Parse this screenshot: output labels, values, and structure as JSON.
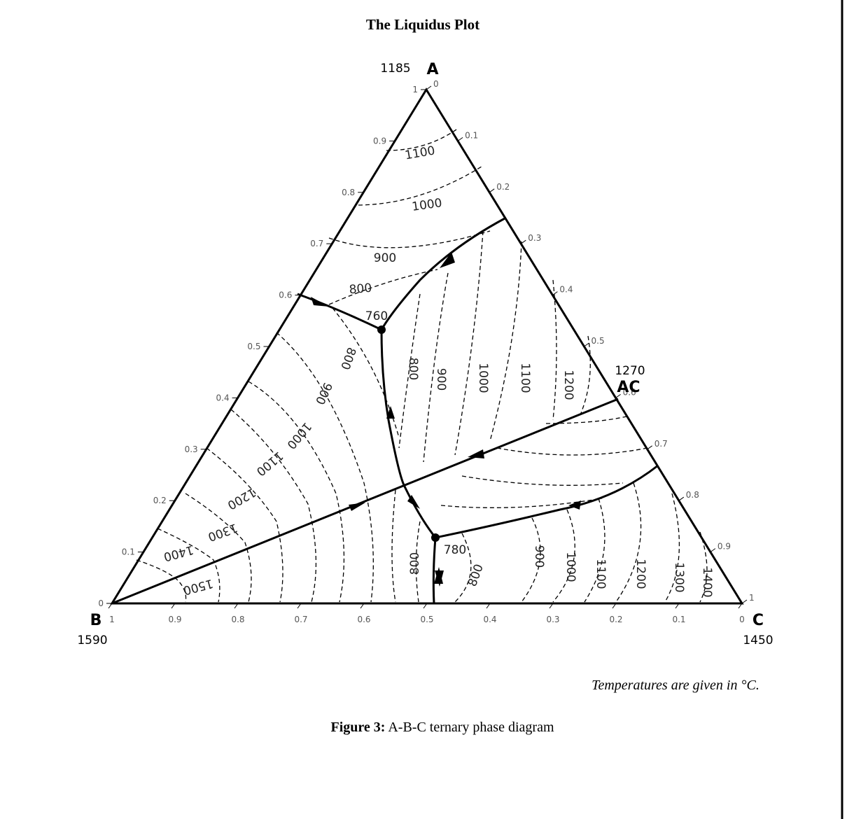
{
  "title": "The Liquidus Plot",
  "vertices": {
    "A": {
      "label": "A",
      "temperature": 1185
    },
    "B": {
      "label": "B",
      "temperature": 1590
    },
    "C": {
      "label": "C",
      "temperature": 1450
    },
    "AC": {
      "label": "AC",
      "temperature": 1270
    }
  },
  "left_ticks": [
    0,
    0.1,
    0.2,
    0.3,
    0.4,
    0.5,
    0.6,
    0.7,
    0.8,
    0.9,
    1
  ],
  "right_ticks": [
    0,
    0.1,
    0.2,
    0.3,
    0.4,
    0.5,
    0.6,
    0.7,
    0.8,
    0.9,
    1
  ],
  "bottom_ticks": [
    1,
    0.9,
    0.8,
    0.7,
    0.6,
    0.5,
    0.4,
    0.3,
    0.2,
    0.1,
    0
  ],
  "isotherm_labels": [
    1100,
    1000,
    900,
    800,
    800,
    900,
    1000,
    1100,
    1200,
    1300,
    1400,
    1500,
    800,
    900,
    1000,
    1100,
    1200,
    800,
    800,
    900,
    1000,
    1100,
    1200,
    1300,
    1400
  ],
  "invariant_points": [
    760,
    780
  ],
  "note": "Temperatures are given in °C.",
  "caption": {
    "label": "Figure 3:",
    "text": "A-B-C ternary phase diagram"
  }
}
